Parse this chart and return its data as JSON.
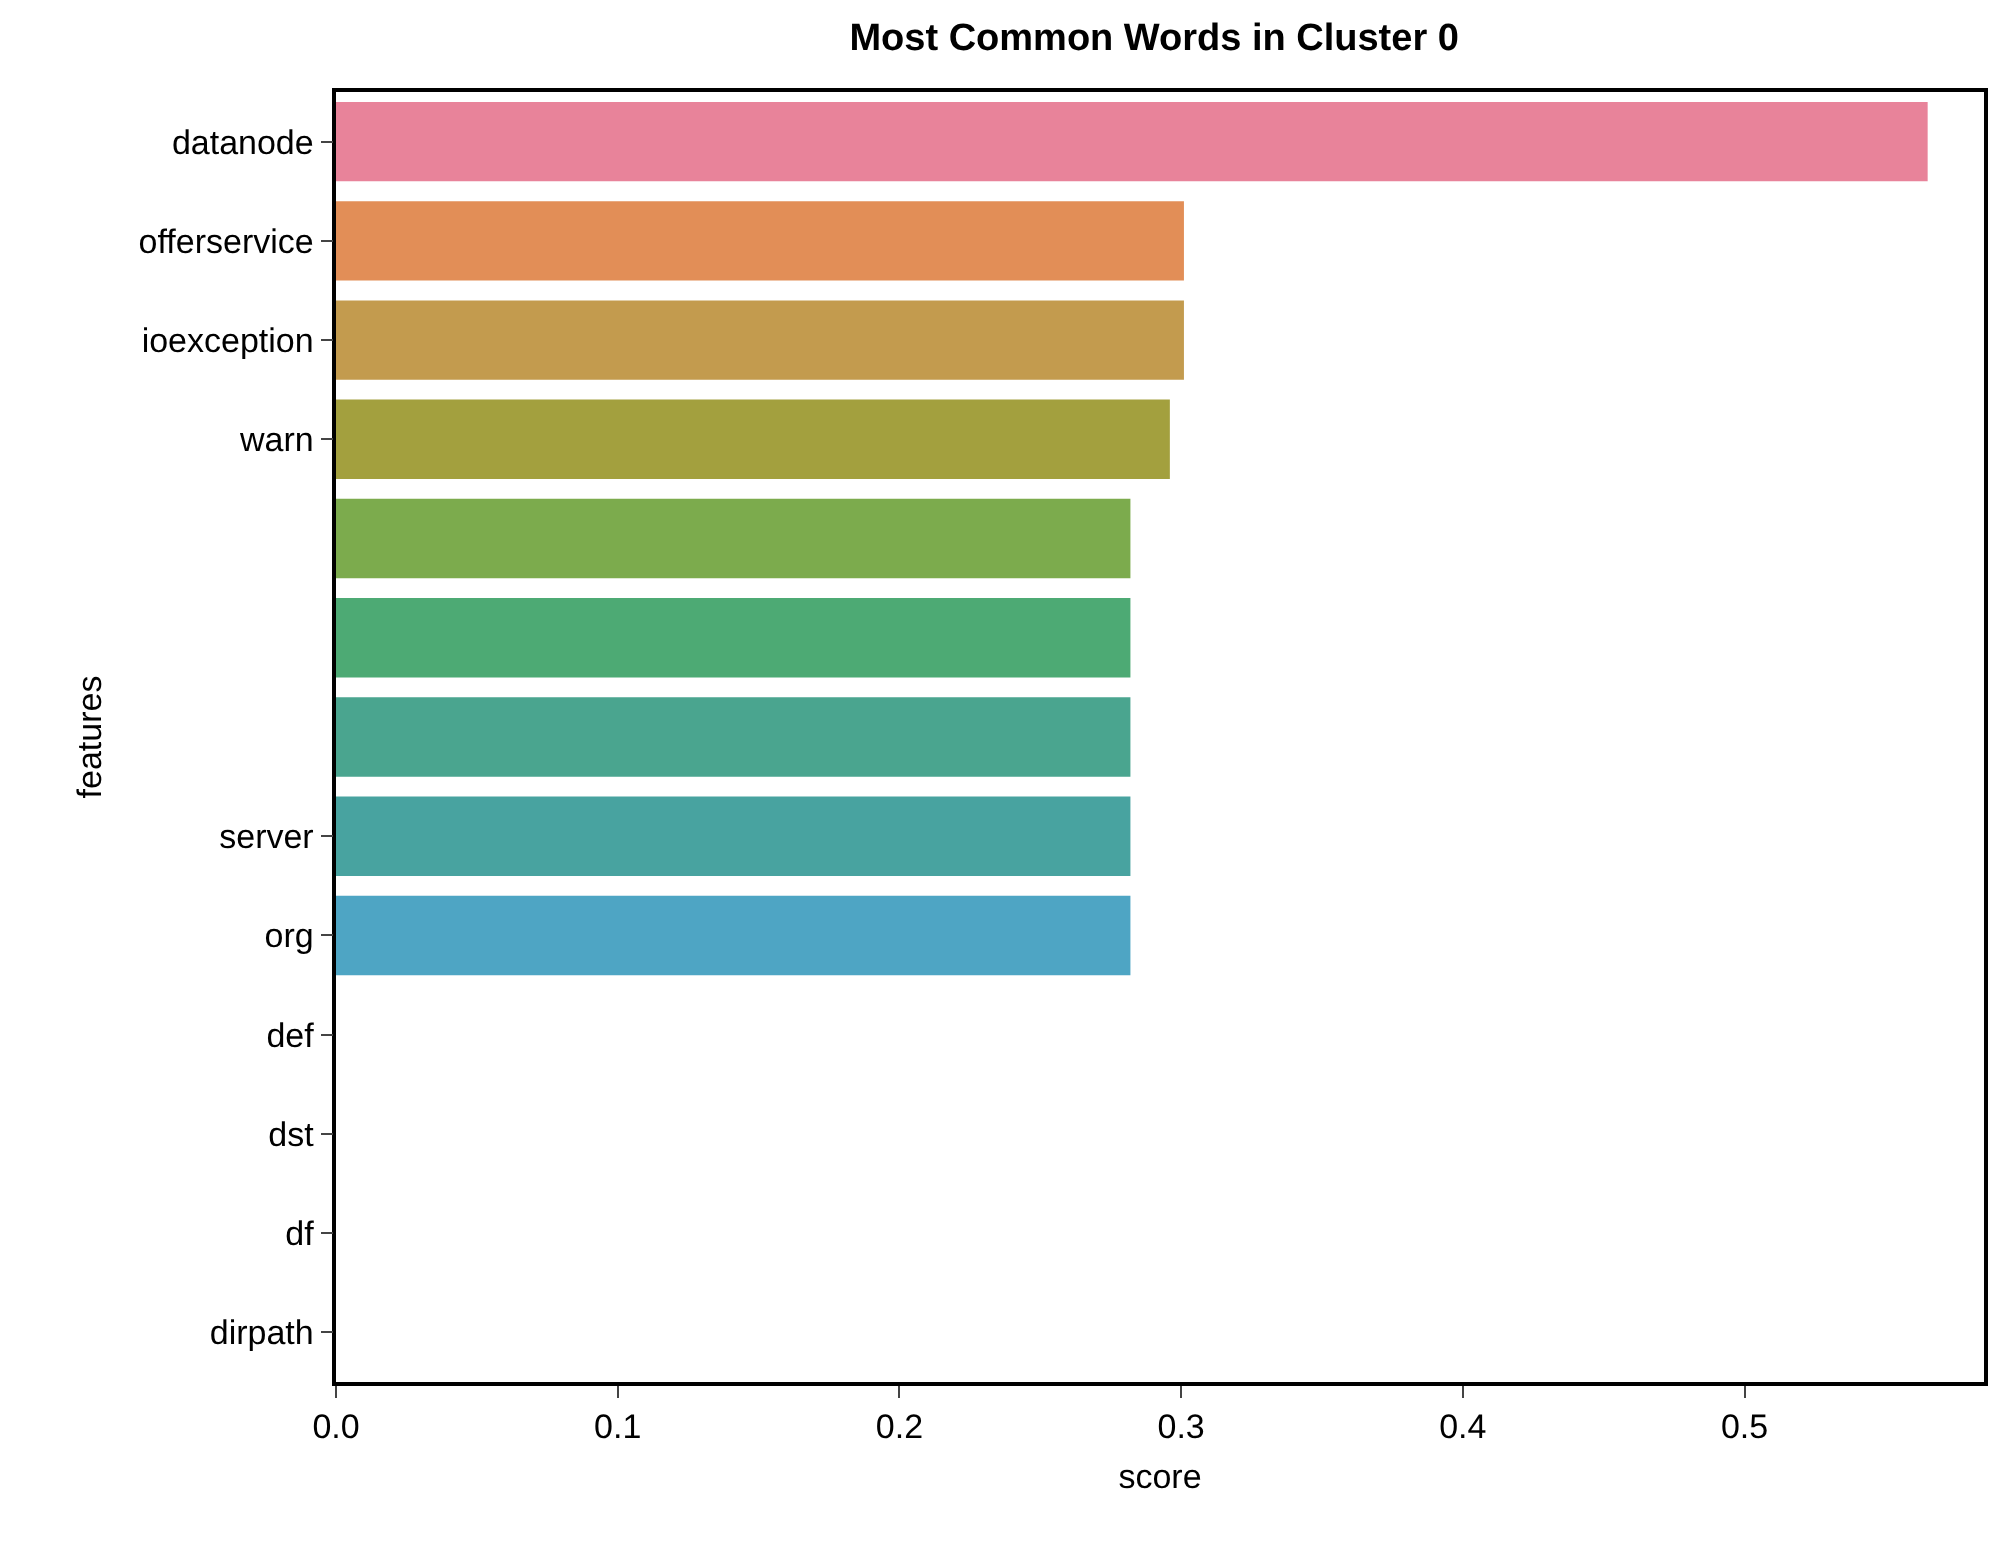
{
  "chart_data": {
    "type": "bar",
    "title": "Most Common Words in Cluster 0",
    "xlabel": "score",
    "ylabel": "features",
    "orientation": "horizontal",
    "categories": [
      "datanode",
      "offerservice",
      "ioexception",
      "warn",
      null,
      null,
      null,
      "server",
      "org",
      "def",
      "dst",
      "df",
      "dirpath"
    ],
    "values": [
      0.565,
      0.301,
      0.301,
      0.296,
      0.282,
      0.282,
      0.282,
      0.282,
      0.282,
      0,
      0,
      0,
      0
    ],
    "colors": [
      "#e8839a",
      "#e28e57",
      "#c39b4e",
      "#a3a03e",
      "#7cab4d",
      "#4daa74",
      "#4aa58f",
      "#48a3a0",
      "#4ea5c4",
      "#6e9bd6",
      "#a08ce0",
      "#cc7ed8",
      "#e47fb6"
    ],
    "xlim": [
      0,
      0.585
    ],
    "xticks": [
      {
        "value": 0,
        "label": "0.0"
      },
      0.1,
      0.2,
      0.3,
      0.4,
      0.5
    ],
    "grid": false,
    "legend": false
  }
}
